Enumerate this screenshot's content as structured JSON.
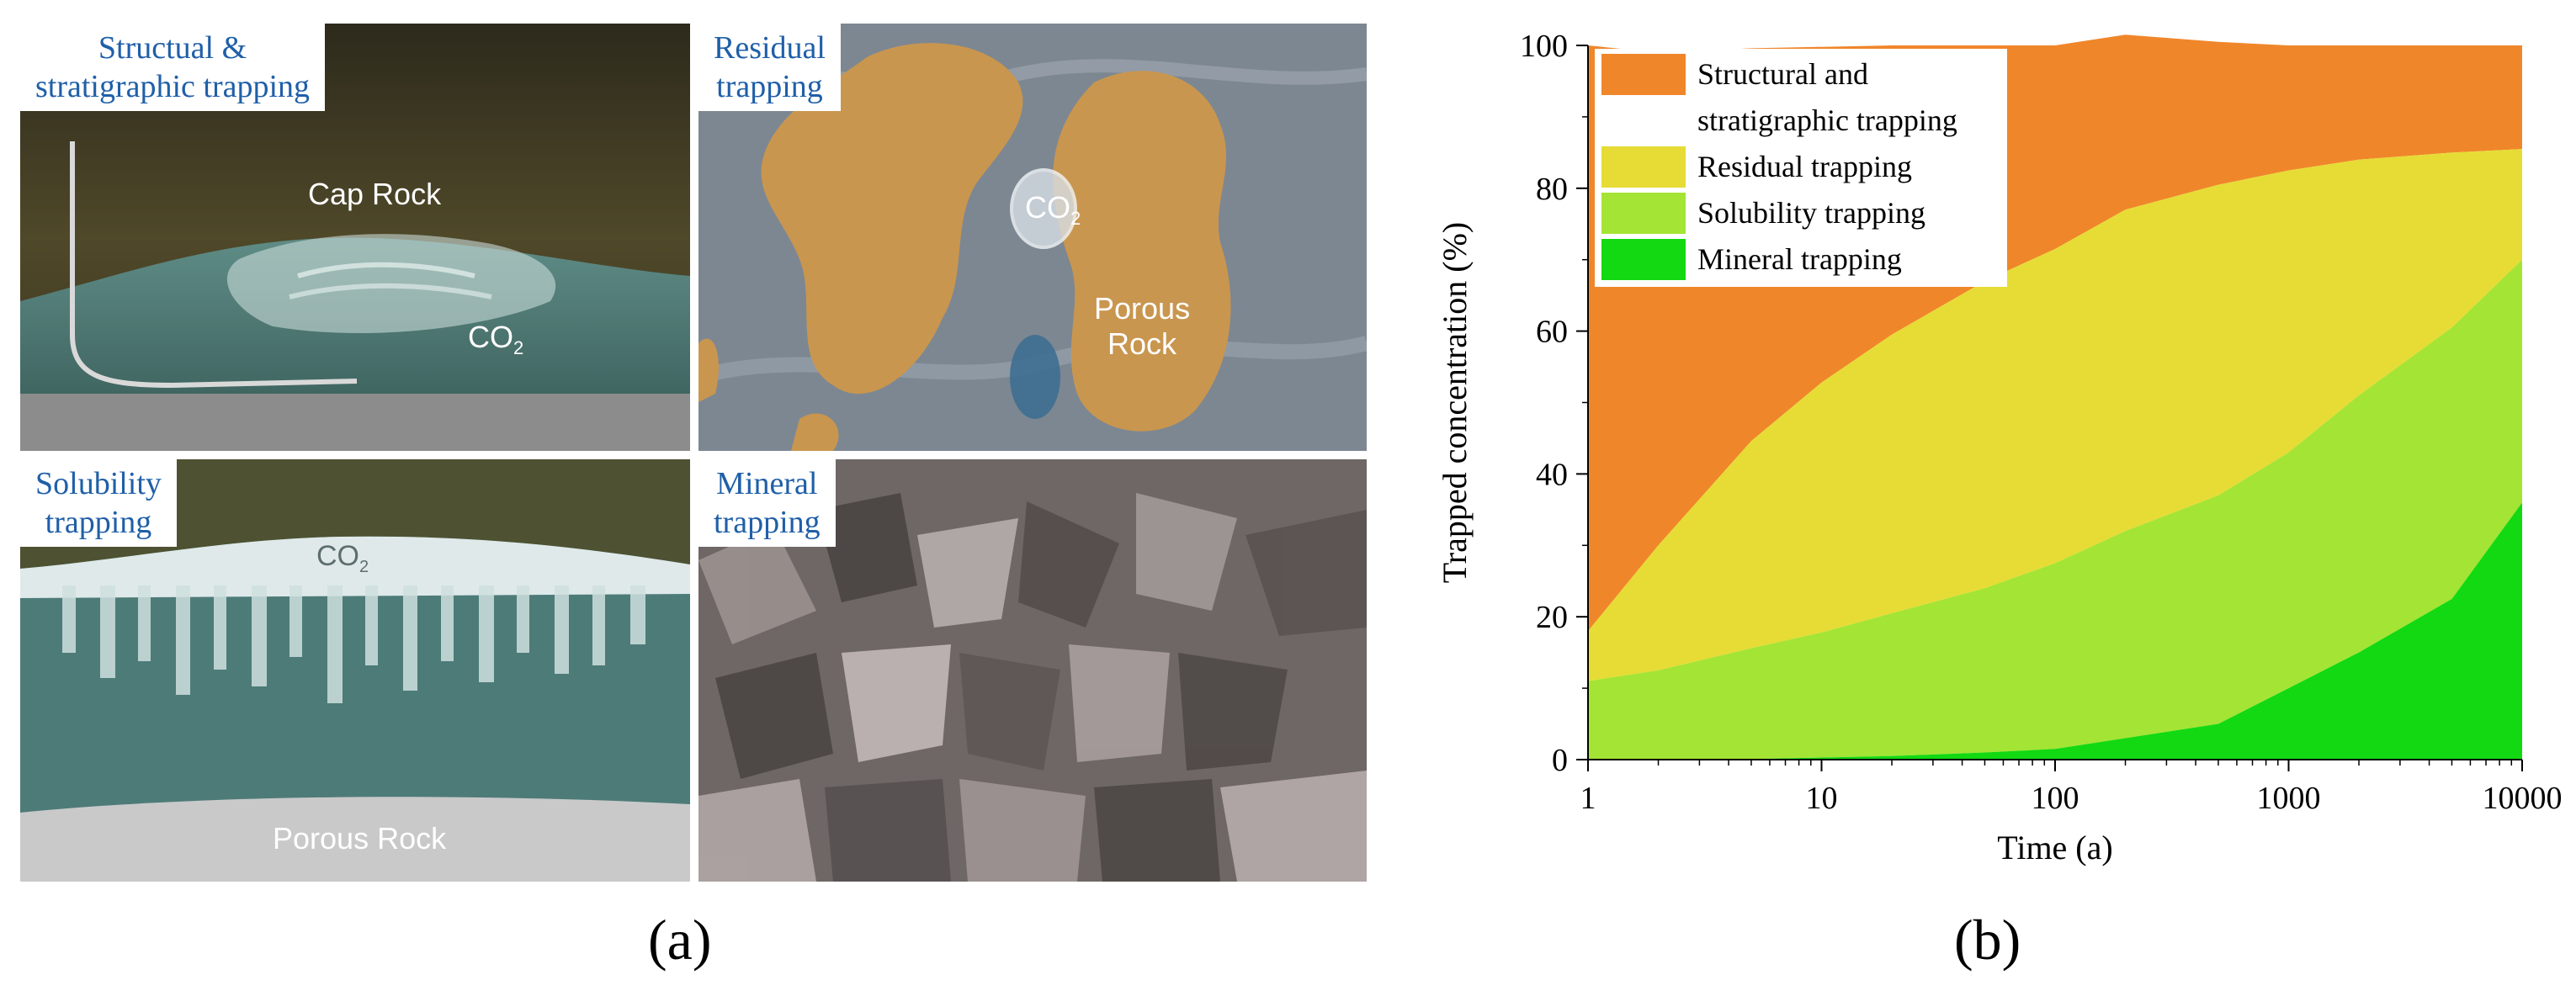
{
  "panel_a": {
    "caption": "(a)",
    "tiles": {
      "structural": {
        "title_line1": "Structual &",
        "title_line2": "stratigraphic trapping",
        "label_cap": "Cap Rock",
        "label_co2": "CO",
        "label_co2_sub": "2"
      },
      "residual": {
        "title_line1": "Residual",
        "title_line2": "trapping",
        "label_co2": "CO",
        "label_co2_sub": "2",
        "label_rock_1": "Porous",
        "label_rock_2": "Rock"
      },
      "solubility": {
        "title_line1": "Solubility",
        "title_line2": "trapping",
        "label_co2": "CO",
        "label_co2_sub": "2",
        "label_rock": "Porous Rock"
      },
      "mineral": {
        "title_line1": "Mineral",
        "title_line2": "trapping"
      }
    },
    "colors": {
      "title_text": "#1f5fa8",
      "tile_border": "#ffffff"
    }
  },
  "panel_b": {
    "caption": "(b)"
  },
  "chart_data": {
    "type": "area",
    "stacked": true,
    "xscale": "log",
    "x": [
      1,
      2,
      5,
      10,
      20,
      50,
      100,
      200,
      500,
      1000,
      2000,
      5000,
      10000
    ],
    "xlim": [
      1,
      10000
    ],
    "ylim": [
      0,
      100
    ],
    "xticks": [
      "1",
      "10",
      "100",
      "1000",
      "10000"
    ],
    "yticks": [
      "0",
      "20",
      "40",
      "60",
      "80",
      "100"
    ],
    "xlabel": "Time (a)",
    "ylabel": "Trapped concentration (%)",
    "legend_position": "top-left",
    "series": [
      {
        "name": "Structural and stratigraphic trapping",
        "legend_lines": [
          "Structural and",
          "stratigraphic trapping"
        ],
        "color": "#f0862a",
        "values": [
          82,
          69,
          55,
          47,
          40.5,
          33,
          28.5,
          24.5,
          20,
          17.5,
          16,
          15,
          14.5
        ]
      },
      {
        "name": "Residual trapping",
        "legend_lines": [
          "Residual trapping"
        ],
        "color": "#e6dc35",
        "values": [
          7,
          17.5,
          29,
          35,
          39,
          43,
          44,
          45,
          43.5,
          39.5,
          33,
          24.5,
          15.5
        ]
      },
      {
        "name": "Solubility trapping",
        "legend_lines": [
          "Solubility trapping"
        ],
        "color": "#a4e434",
        "values": [
          11,
          12.5,
          15.5,
          17.5,
          20,
          23,
          26,
          29,
          32,
          33,
          36,
          38,
          34
        ]
      },
      {
        "name": "Mineral trapping",
        "legend_lines": [
          "Mineral trapping"
        ],
        "color": "#12d912",
        "values": [
          0,
          0,
          0.1,
          0.3,
          0.5,
          1,
          1.5,
          3,
          5,
          10,
          15,
          22.5,
          36
        ]
      }
    ]
  }
}
